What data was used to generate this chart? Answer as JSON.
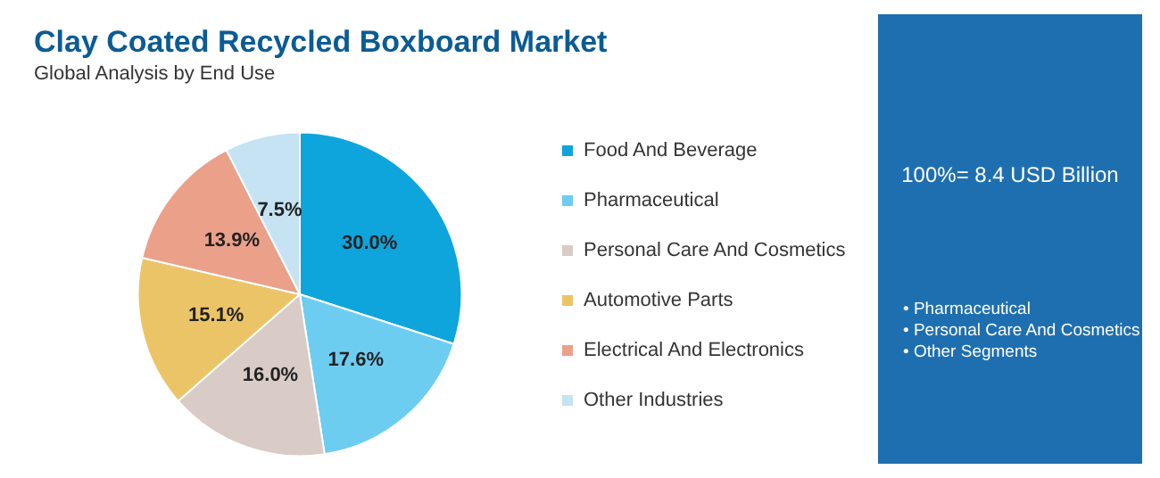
{
  "chart_data": {
    "type": "pie",
    "title": "Clay Coated Recycled Boxboard Market",
    "subtitle": "Global Analysis by End Use",
    "categories": [
      "Food And Beverage",
      "Pharmaceutical",
      "Personal Care And Cosmetics",
      "Automotive Parts",
      "Electrical And Electronics",
      "Other Industries"
    ],
    "values": [
      30.0,
      17.6,
      16.0,
      15.1,
      13.9,
      7.5
    ],
    "value_labels": [
      "30.0%",
      "17.6%",
      "16.0%",
      "15.1%",
      "13.9%",
      "7.5%"
    ],
    "colors": [
      "#0ea5dc",
      "#6dcdf0",
      "#d9cbc6",
      "#ecc468",
      "#eba08a",
      "#c5e3f2"
    ],
    "legend": "right",
    "annotations": [
      "100%= 8.4 USD Billion",
      "• Pharmaceutical",
      "• Personal Care And Cosmetics",
      "• Other Segments"
    ]
  }
}
